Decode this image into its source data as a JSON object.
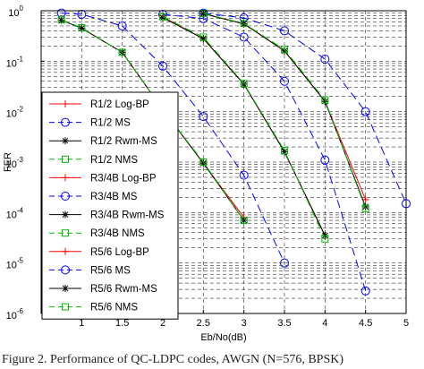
{
  "chart_data": {
    "type": "line",
    "title": "",
    "xlabel": "Eb/No(dB)",
    "ylabel": "FER",
    "xlim": [
      0.5,
      5
    ],
    "ylim_log10": [
      -6,
      0
    ],
    "yscale": "log",
    "grid": true,
    "legend_position": "left",
    "x_ticks": [
      "1",
      "1.5",
      "2",
      "2.5",
      "3",
      "3.5",
      "4",
      "4.5",
      "5"
    ],
    "y_ticks": [
      {
        "base": "10",
        "exp": "0"
      },
      {
        "base": "10",
        "exp": "-1"
      },
      {
        "base": "10",
        "exp": "-2"
      },
      {
        "base": "10",
        "exp": "-3"
      },
      {
        "base": "10",
        "exp": "-4"
      },
      {
        "base": "10",
        "exp": "-5"
      },
      {
        "base": "10",
        "exp": "-6"
      }
    ],
    "series": [
      {
        "name": "R1/2 Log-BP",
        "color": "#ff0000",
        "marker": "plus",
        "dash": "solid",
        "x": [
          1.0,
          1.5,
          2.0,
          2.5,
          3.0
        ],
        "y": [
          0.45,
          0.15,
          0.011,
          0.00095,
          8e-05
        ]
      },
      {
        "name": "R1/2 MS",
        "color": "#0000ff",
        "marker": "circle",
        "dash": "dash",
        "x": [
          0.75,
          1.0,
          1.5,
          2.0,
          2.5,
          3.0,
          3.5,
          4.0,
          4.5
        ],
        "y": [
          0.9,
          0.85,
          0.5,
          0.08,
          0.008,
          0.00055,
          1e-05,
          null,
          null
        ]
      },
      {
        "name": "R1/2 Rwm-MS",
        "color": "#000000",
        "marker": "star",
        "dash": "solid",
        "x": [
          0.75,
          1.0,
          1.5,
          2.0,
          2.5,
          3.0
        ],
        "y": [
          0.65,
          0.45,
          0.15,
          0.011,
          0.00095,
          7e-05
        ]
      },
      {
        "name": "R1/2 NMS",
        "color": "#00bb00",
        "marker": "square",
        "dash": "dash",
        "x": [
          0.75,
          1.0,
          1.5,
          2.0,
          2.5,
          3.0
        ],
        "y": [
          0.66,
          0.46,
          0.15,
          0.011,
          0.001,
          7e-05
        ]
      },
      {
        "name": "R3/4B Log-BP",
        "color": "#ff0000",
        "marker": "plus",
        "dash": "solid",
        "x": [
          2.0,
          2.5,
          3.0,
          3.5,
          4.0
        ],
        "y": [
          0.75,
          0.28,
          0.035,
          0.0016,
          3.5e-05
        ]
      },
      {
        "name": "R3/4B MS",
        "color": "#0000ff",
        "marker": "circle",
        "dash": "dash",
        "x": [
          2.0,
          2.5,
          3.0,
          3.5,
          4.0,
          4.5
        ],
        "y": [
          0.85,
          0.7,
          0.3,
          0.04,
          0.0011,
          2.8e-06
        ]
      },
      {
        "name": "R3/4B Rwm-MS",
        "color": "#000000",
        "marker": "star",
        "dash": "solid",
        "x": [
          2.0,
          2.5,
          3.0,
          3.5,
          4.0
        ],
        "y": [
          0.73,
          0.28,
          0.035,
          0.0016,
          3.5e-05
        ]
      },
      {
        "name": "R3/4B NMS",
        "color": "#00bb00",
        "marker": "square",
        "dash": "dash",
        "x": [
          2.0,
          2.5,
          3.0,
          3.5,
          4.0
        ],
        "y": [
          0.76,
          0.3,
          0.036,
          0.0017,
          3e-05
        ]
      },
      {
        "name": "R5/6 Log-BP",
        "color": "#ff0000",
        "marker": "plus",
        "dash": "solid",
        "x": [
          2.5,
          3.0,
          3.5,
          4.0,
          4.5
        ],
        "y": [
          0.88,
          0.55,
          0.16,
          0.016,
          0.00018
        ]
      },
      {
        "name": "R5/6 MS",
        "color": "#0000ff",
        "marker": "circle",
        "dash": "dash",
        "x": [
          2.5,
          3.0,
          3.5,
          4.0,
          4.5,
          5.0
        ],
        "y": [
          0.9,
          0.72,
          0.4,
          0.11,
          0.01,
          0.00015
        ]
      },
      {
        "name": "R5/6 Rwm-MS",
        "color": "#000000",
        "marker": "star",
        "dash": "solid",
        "x": [
          2.5,
          3.0,
          3.5,
          4.0,
          4.5
        ],
        "y": [
          0.87,
          0.55,
          0.16,
          0.016,
          0.00013
        ]
      },
      {
        "name": "R5/6 NMS",
        "color": "#00bb00",
        "marker": "square",
        "dash": "dash",
        "x": [
          2.5,
          3.0,
          3.5,
          4.0,
          4.5
        ],
        "y": [
          0.89,
          0.56,
          0.17,
          0.017,
          0.00012
        ]
      }
    ]
  },
  "caption": "Figure 2.  Performance of QC-LDPC codes, AWGN (N=576, BPSK)"
}
